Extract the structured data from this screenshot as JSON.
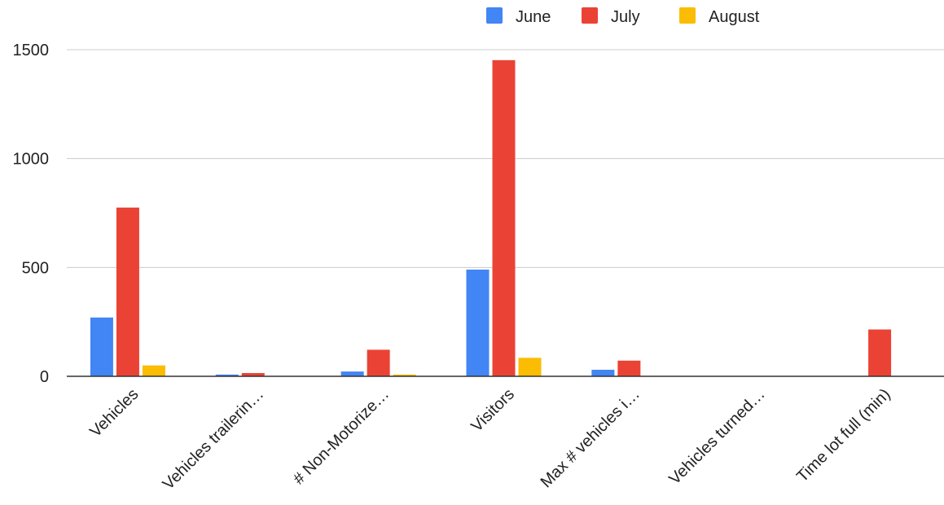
{
  "chart_data": {
    "type": "bar",
    "categories": [
      "Vehicles",
      "Vehicles trailerin…",
      "# Non-Motorize…",
      "Visitors",
      "Max # vehicles i…",
      "Vehicles turned…",
      "Time lot full (min)"
    ],
    "series": [
      {
        "name": "June",
        "color": "#4285F4",
        "values": [
          270,
          8,
          22,
          490,
          30,
          0,
          0
        ]
      },
      {
        "name": "July",
        "color": "#EA4335",
        "values": [
          775,
          15,
          122,
          1452,
          72,
          0,
          215
        ]
      },
      {
        "name": "August",
        "color": "#FBBC04",
        "values": [
          50,
          0,
          8,
          85,
          0,
          0,
          0
        ]
      }
    ],
    "ylim": [
      0,
      1500
    ],
    "yticks": [
      0,
      500,
      1000,
      1500
    ],
    "grid": true,
    "legend_position": "top",
    "title": "",
    "xlabel": "",
    "ylabel": ""
  }
}
